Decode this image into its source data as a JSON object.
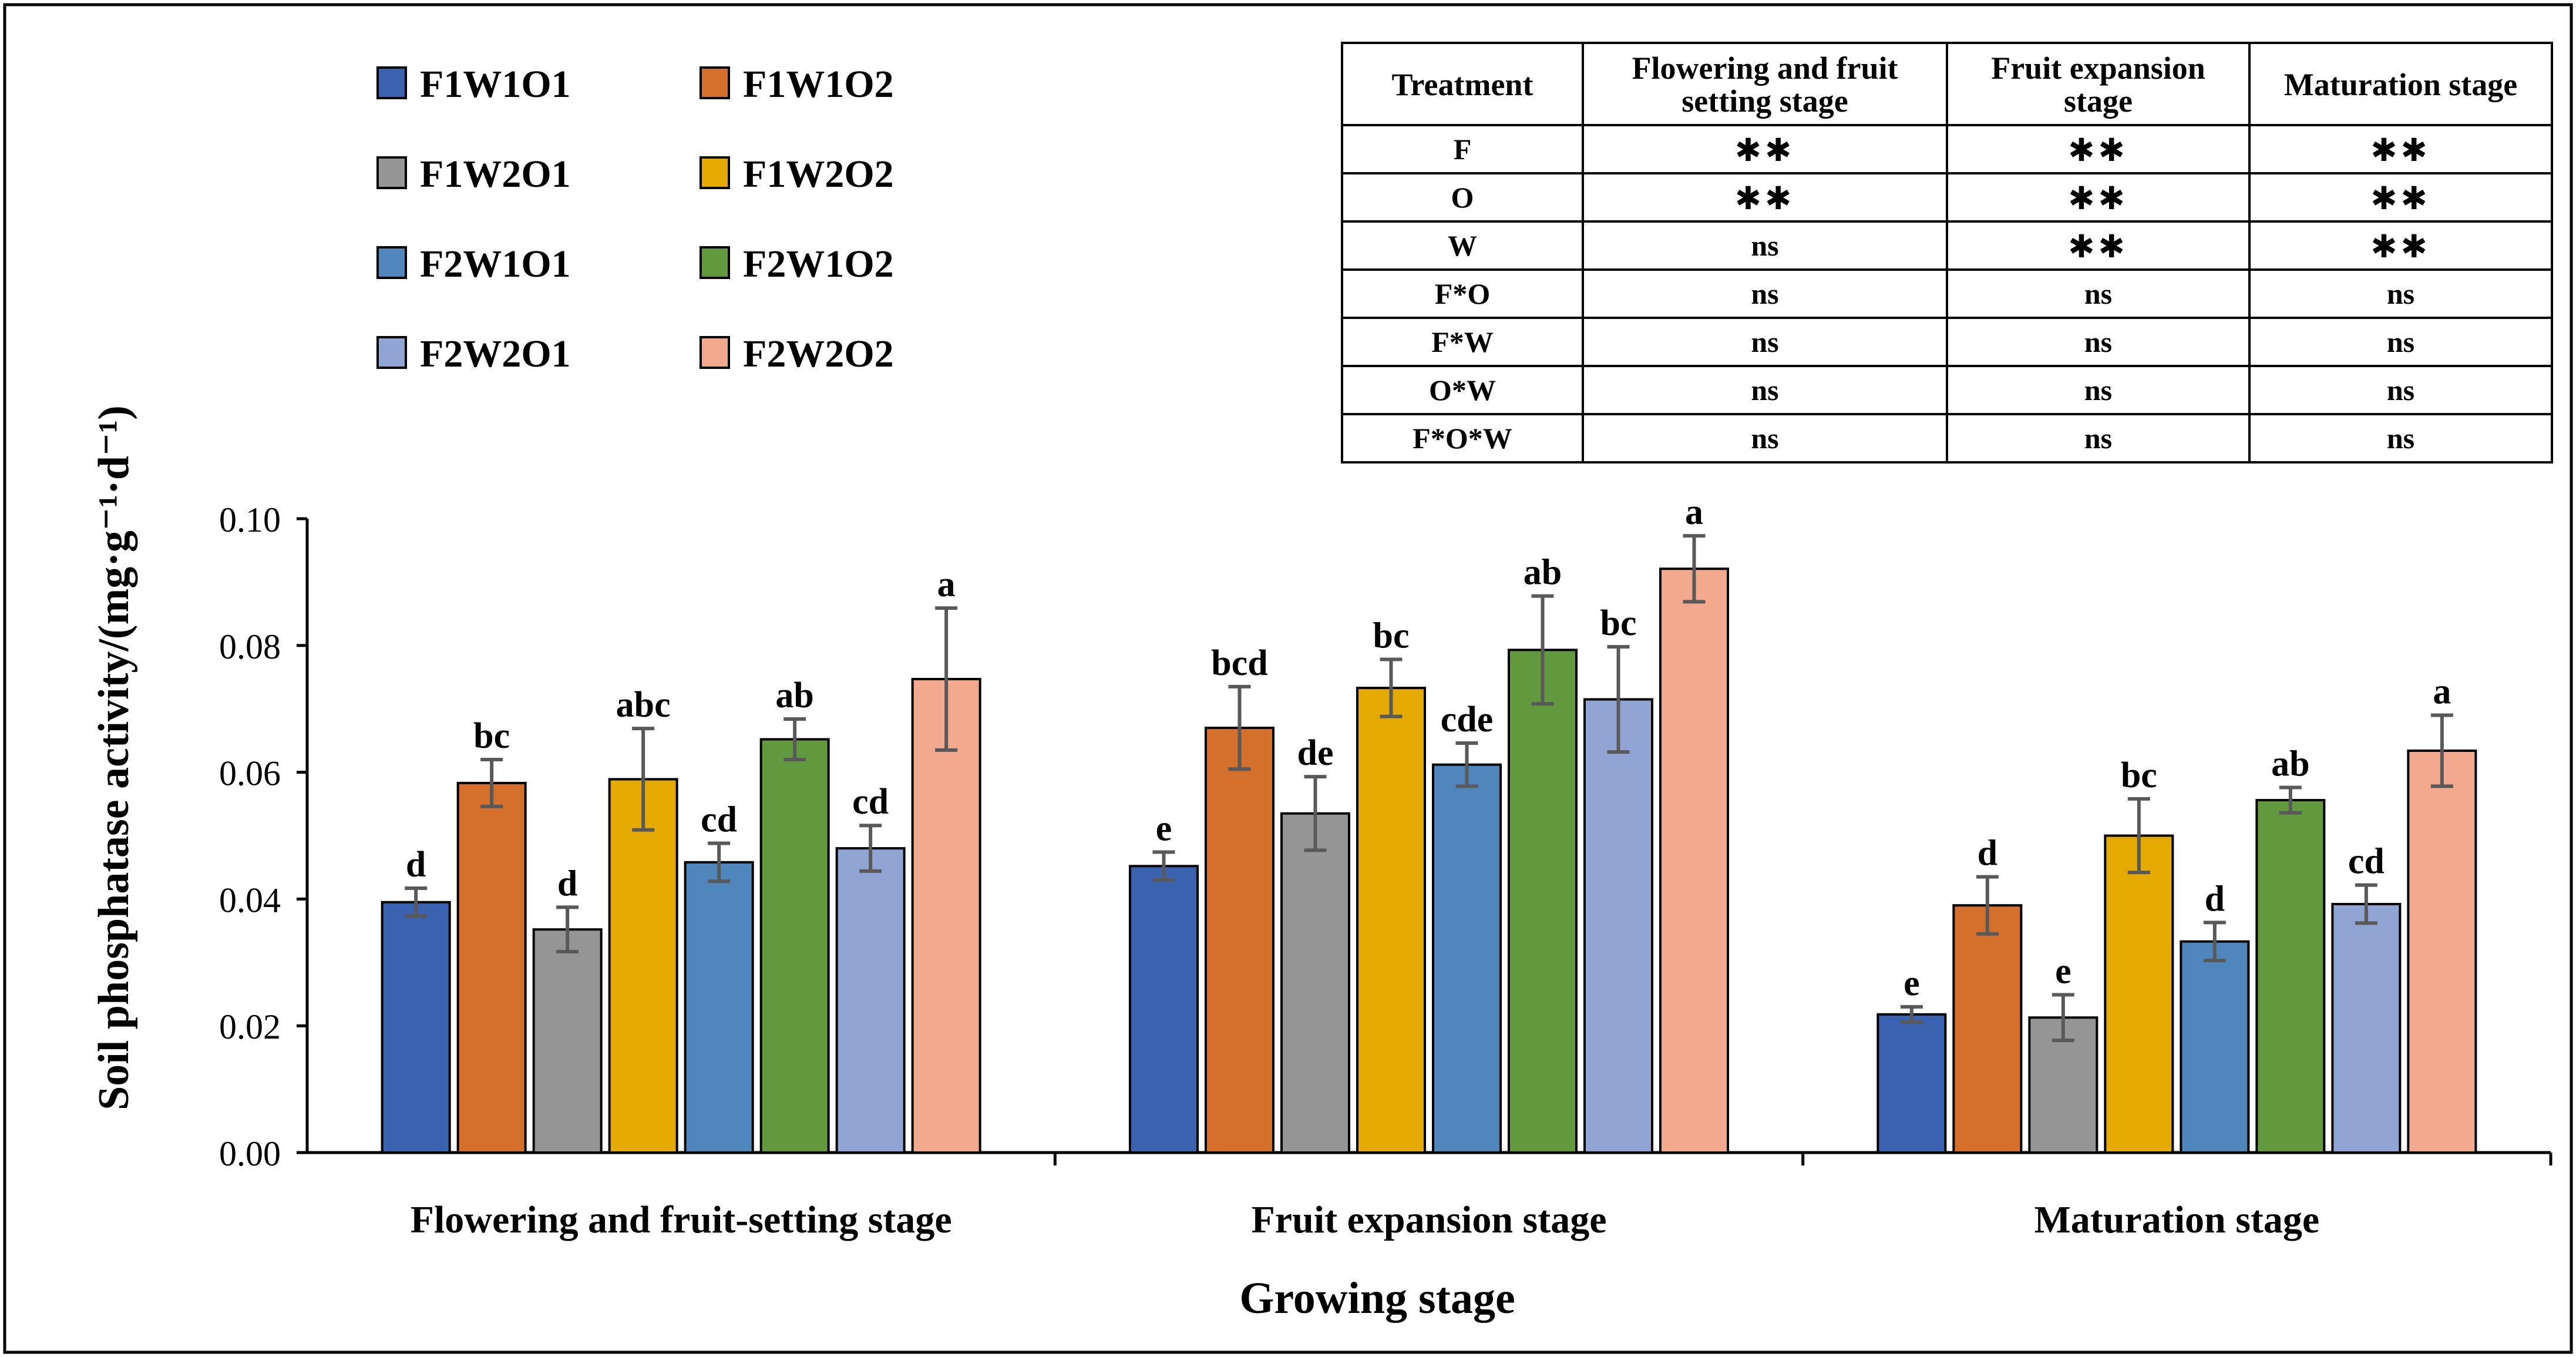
{
  "chart_data": {
    "type": "bar",
    "xlabel": "Growing stage",
    "ylabel": "Soil phosphatase activity/(mg·g⁻¹·d⁻¹)",
    "ylim": [
      0,
      0.1
    ],
    "yticks": [
      "0.00",
      "0.02",
      "0.04",
      "0.06",
      "0.08",
      "0.10"
    ],
    "grid": false,
    "legend_position": "top-left",
    "categories": [
      "Flowering and fruit-setting stage",
      "Fruit expansion stage",
      "Maturation stage"
    ],
    "series": [
      {
        "name": "F1W1O1",
        "color": "#3a62ae",
        "values": [
          0.0395,
          0.0452,
          0.0218
        ],
        "errors": [
          0.0022,
          0.0022,
          0.0012
        ],
        "letters": [
          "d",
          "e",
          "e"
        ]
      },
      {
        "name": "F1W1O2",
        "color": "#d5702c",
        "values": [
          0.0583,
          0.067,
          0.039
        ],
        "errors": [
          0.0037,
          0.0065,
          0.0045
        ],
        "letters": [
          "bc",
          "bcd",
          "d"
        ]
      },
      {
        "name": "F1W2O1",
        "color": "#959595",
        "values": [
          0.0352,
          0.0535,
          0.0213
        ],
        "errors": [
          0.0035,
          0.0058,
          0.0036
        ],
        "letters": [
          "d",
          "de",
          "e"
        ]
      },
      {
        "name": "F1W2O2",
        "color": "#e4aa02",
        "values": [
          0.0589,
          0.0733,
          0.05
        ],
        "errors": [
          0.008,
          0.0045,
          0.0058
        ],
        "letters": [
          "abc",
          "bc",
          "bc"
        ]
      },
      {
        "name": "F2W1O1",
        "color": "#4f87bd",
        "values": [
          0.0458,
          0.0612,
          0.0333
        ],
        "errors": [
          0.003,
          0.0034,
          0.003
        ],
        "letters": [
          "cd",
          "cde",
          "d"
        ]
      },
      {
        "name": "F2W1O2",
        "color": "#62993e",
        "values": [
          0.0652,
          0.0793,
          0.0556
        ],
        "errors": [
          0.0032,
          0.0085,
          0.002
        ],
        "letters": [
          "ab",
          "ab",
          "ab"
        ]
      },
      {
        "name": "F2W2O1",
        "color": "#91a5d5",
        "values": [
          0.048,
          0.0715,
          0.0392
        ],
        "errors": [
          0.0036,
          0.0083,
          0.003
        ],
        "letters": [
          "cd",
          "bc",
          "cd"
        ]
      },
      {
        "name": "F2W2O2",
        "color": "#f2a98e",
        "values": [
          0.0747,
          0.0921,
          0.0634
        ],
        "errors": [
          0.0112,
          0.0052,
          0.0056
        ],
        "letters": [
          "a",
          "a",
          "a"
        ]
      }
    ],
    "significance_table": {
      "headers": [
        [
          "Treatment"
        ],
        [
          "Flowering and fruit",
          "setting stage"
        ],
        [
          "Fruit expansion",
          "stage"
        ],
        [
          "Maturation stage"
        ]
      ],
      "rows": [
        [
          "F",
          "**",
          "**",
          "**"
        ],
        [
          "O",
          "**",
          "**",
          "**"
        ],
        [
          "W",
          "ns",
          "**",
          "**"
        ],
        [
          "F*O",
          "ns",
          "ns",
          "ns"
        ],
        [
          "F*W",
          "ns",
          "ns",
          "ns"
        ],
        [
          "O*W",
          "ns",
          "ns",
          "ns"
        ],
        [
          "F*O*W",
          "ns",
          "ns",
          "ns"
        ]
      ]
    }
  }
}
